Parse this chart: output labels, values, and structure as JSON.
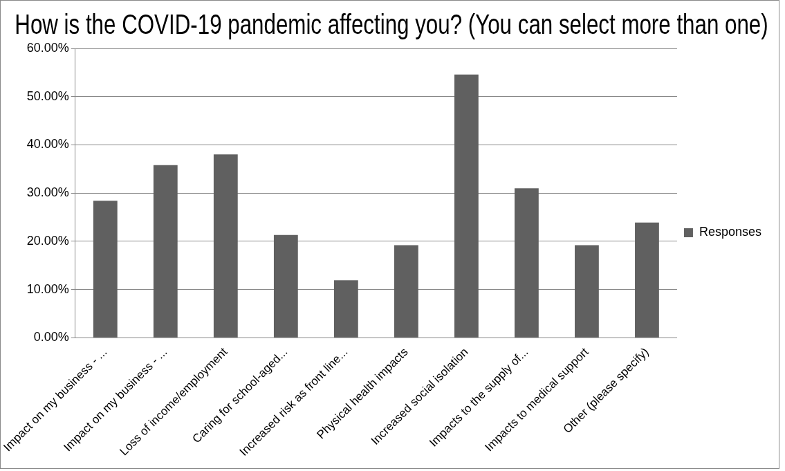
{
  "chart_data": {
    "type": "bar",
    "title": "How is the COVID-19 pandemic affecting you? (You can select more than one)",
    "categories": [
      "Impact on my business - ...",
      "Impact on my business - ...",
      "Loss of income/employment",
      "Caring for school-aged...",
      "Increased risk as front line...",
      "Physical health impacts",
      "Increased social isolation",
      "Impacts to the supply of...",
      "Impacts to medical support",
      "Other (please specify)"
    ],
    "series": [
      {
        "name": "Responses",
        "color": "#606060",
        "values": [
          28.4,
          35.8,
          38.0,
          21.3,
          11.9,
          19.2,
          54.6,
          31.0,
          19.2,
          23.9
        ]
      }
    ],
    "ylim": [
      0,
      60
    ],
    "yticks": [
      {
        "value": 0,
        "label": "0.00%"
      },
      {
        "value": 10,
        "label": "10.00%"
      },
      {
        "value": 20,
        "label": "20.00%"
      },
      {
        "value": 30,
        "label": "30.00%"
      },
      {
        "value": 40,
        "label": "40.00%"
      },
      {
        "value": 50,
        "label": "50.00%"
      },
      {
        "value": 60,
        "label": "60.00%"
      }
    ],
    "grid": "y",
    "legend": "right"
  }
}
